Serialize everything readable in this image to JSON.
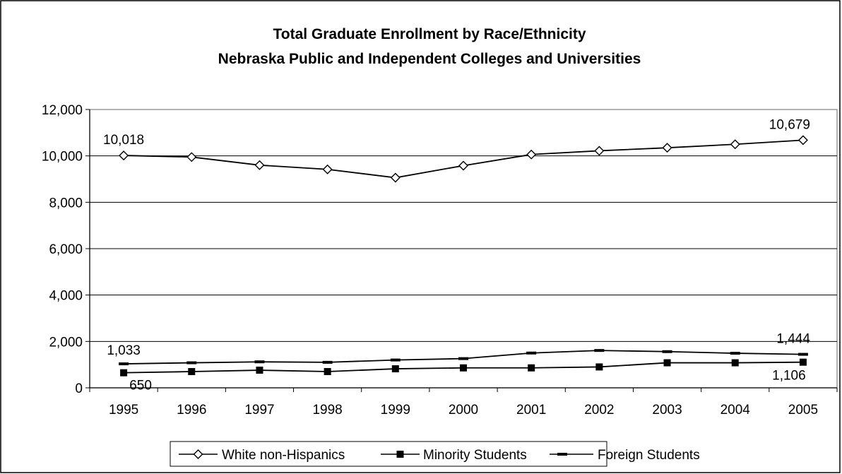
{
  "chart_data": {
    "type": "line",
    "title": "Total Graduate Enrollment by Race/Ethnicity",
    "subtitle": "Nebraska Public and Independent Colleges and Universities",
    "categories": [
      "1995",
      "1996",
      "1997",
      "1998",
      "1999",
      "2000",
      "2001",
      "2002",
      "2003",
      "2004",
      "2005"
    ],
    "ylim": [
      0,
      12000
    ],
    "yticks": [
      0,
      2000,
      4000,
      6000,
      8000,
      10000,
      12000
    ],
    "ytick_labels": [
      "0",
      "2,000",
      "4,000",
      "6,000",
      "8,000",
      "10,000",
      "12,000"
    ],
    "grid": true,
    "legend_position": "bottom",
    "series": [
      {
        "name": "White non-Hispanics",
        "marker": "diamond",
        "values": [
          10018,
          9950,
          9600,
          9420,
          9060,
          9580,
          10060,
          10220,
          10350,
          10500,
          10679
        ]
      },
      {
        "name": "Minority Students",
        "marker": "square",
        "values": [
          650,
          700,
          760,
          700,
          820,
          860,
          860,
          900,
          1080,
          1080,
          1106
        ]
      },
      {
        "name": "Foreign Students",
        "marker": "dash",
        "values": [
          1033,
          1080,
          1120,
          1100,
          1200,
          1260,
          1500,
          1610,
          1560,
          1490,
          1444
        ]
      }
    ],
    "data_labels": [
      {
        "series": 0,
        "index": 0,
        "text": "10,018"
      },
      {
        "series": 0,
        "index": 10,
        "text": "10,679"
      },
      {
        "series": 2,
        "index": 0,
        "text": "1,033"
      },
      {
        "series": 2,
        "index": 10,
        "text": "1,444"
      },
      {
        "series": 1,
        "index": 0,
        "text": "650"
      },
      {
        "series": 1,
        "index": 10,
        "text": "1,106"
      }
    ]
  }
}
